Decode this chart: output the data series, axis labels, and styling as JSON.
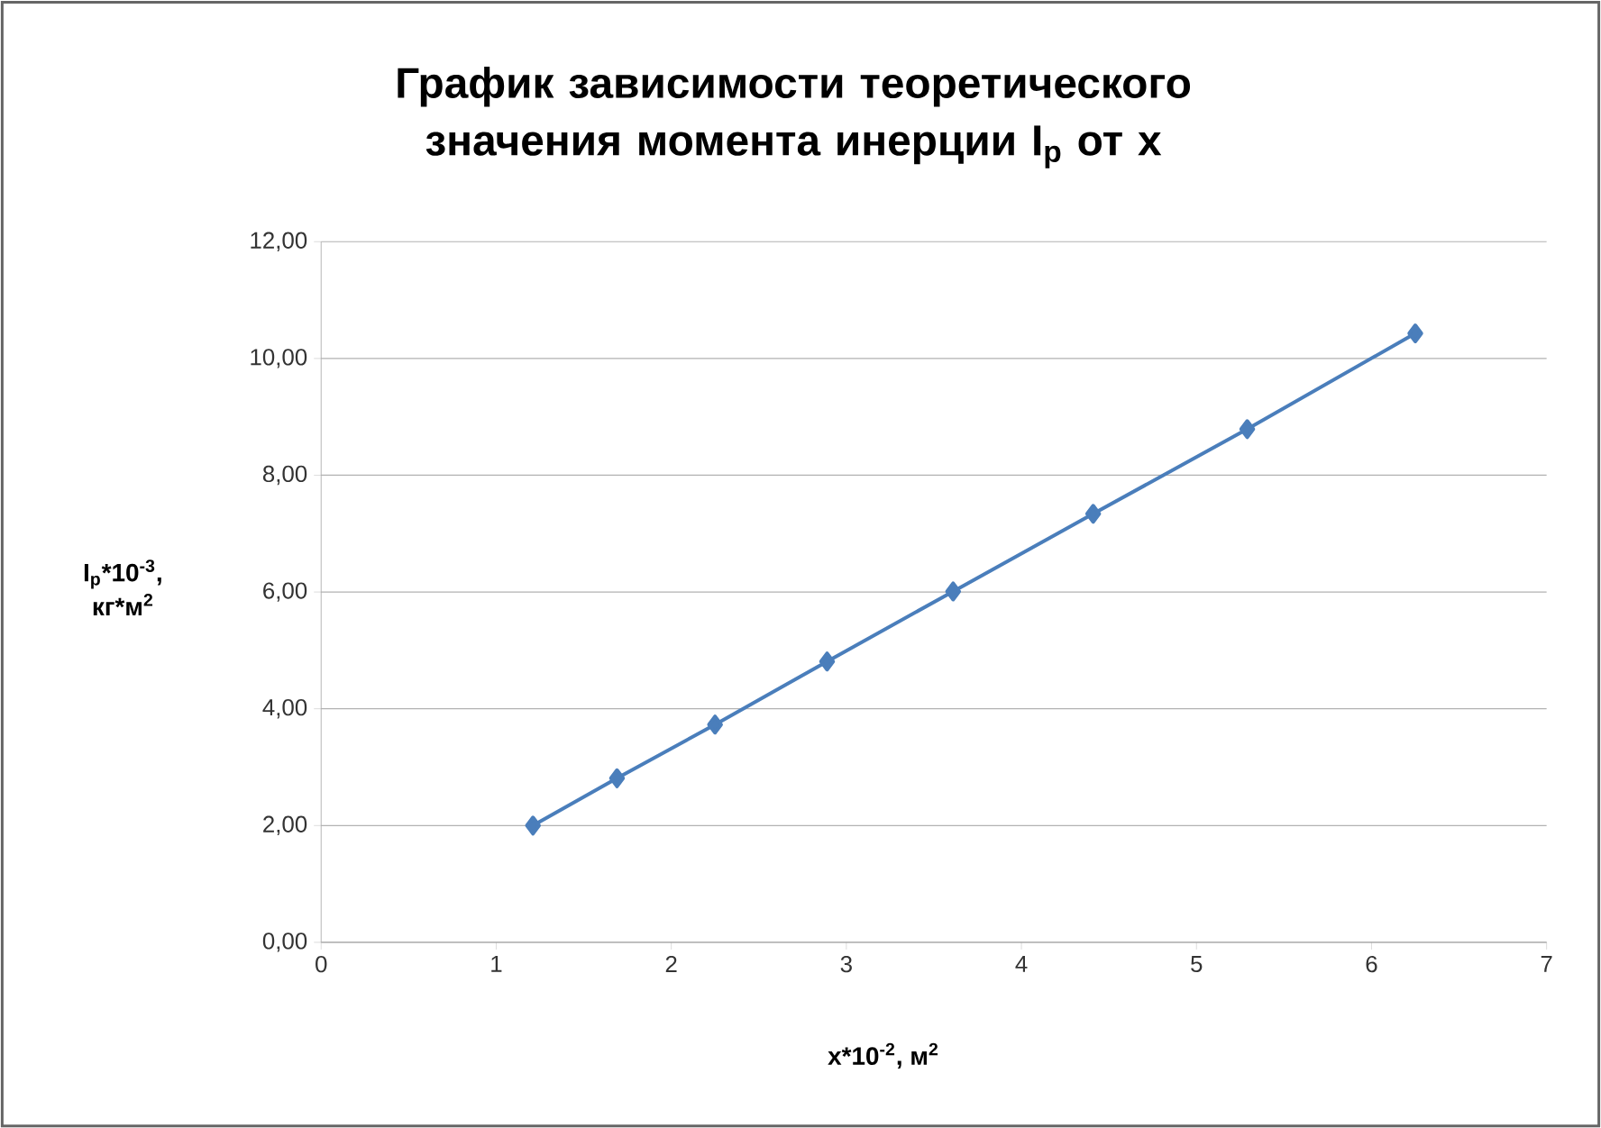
{
  "chart_data": {
    "type": "line",
    "title": "График зависимости теоретического значения момента инерции I$_{p}$ от x",
    "xlabel": "x*10$^{-2}$, м$^{2}$",
    "ylabel": "I$_{p}$*10$^{-3}$, кг*м$^{2}$",
    "x": [
      1.21,
      1.69,
      2.25,
      2.89,
      3.61,
      4.41,
      5.29,
      6.25
    ],
    "series": [
      {
        "color": "#4a7ebb",
        "values": [
          2.0,
          2.81,
          3.73,
          4.81,
          6.01,
          7.34,
          8.79,
          10.43
        ]
      }
    ],
    "xlim": [
      0,
      7
    ],
    "xticks": [
      0,
      1,
      2,
      3,
      4,
      5,
      6,
      7
    ],
    "ylim": [
      0,
      12
    ],
    "yticks": [
      {
        "value": 0,
        "label": "0,00"
      },
      {
        "value": 2,
        "label": "2,00"
      },
      {
        "value": 4,
        "label": "4,00"
      },
      {
        "value": 6,
        "label": "6,00"
      },
      {
        "value": 8,
        "label": "8,00"
      },
      {
        "value": 10,
        "label": "10,00"
      },
      {
        "value": 12,
        "label": "12,00"
      }
    ],
    "grid": "y",
    "marker": "diamond",
    "line_style": "solid",
    "legend": false
  }
}
